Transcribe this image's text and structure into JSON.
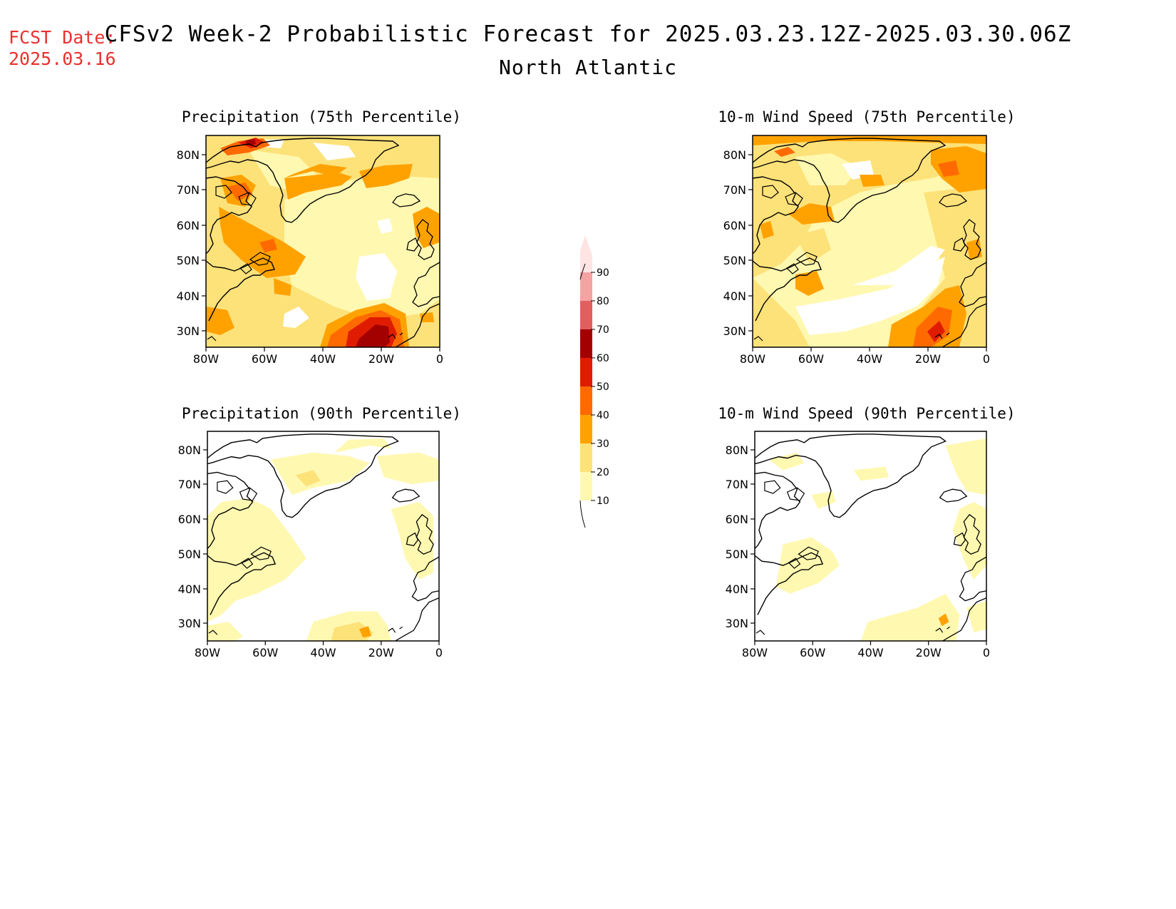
{
  "header": {
    "fcst_date_label": "FCST Date:",
    "fcst_date_value": "2025.03.16",
    "title": "CFSv2 Week-2 Probabilistic Forecast for 2025.03.23.12Z-2025.03.30.06Z",
    "subtitle": "North Atlantic"
  },
  "axes": {
    "lon_ticks": [
      "80W",
      "60W",
      "40W",
      "20W",
      "0"
    ],
    "lat_ticks": [
      "80N",
      "70N",
      "60N",
      "50N",
      "40N",
      "30N"
    ]
  },
  "panels": [
    {
      "id": "precip-75",
      "title": "Precipitation (75th Percentile)"
    },
    {
      "id": "wind-75",
      "title": "10-m Wind Speed (75th Percentile)"
    },
    {
      "id": "precip-90",
      "title": "Precipitation (90th Percentile)"
    },
    {
      "id": "wind-90",
      "title": "10-m Wind Speed (90th Percentile)"
    }
  ],
  "colorbar": {
    "levels": [
      "10",
      "20",
      "30",
      "40",
      "50",
      "60",
      "70",
      "80",
      "90"
    ],
    "colors": [
      "#fff8b0",
      "#fde27a",
      "#ffa200",
      "#ff6a00",
      "#e01c00",
      "#a30000",
      "#e06060",
      "#f4a3a3",
      "#ffe4e4"
    ]
  },
  "colors": {
    "fcst": "#e8312f"
  }
}
